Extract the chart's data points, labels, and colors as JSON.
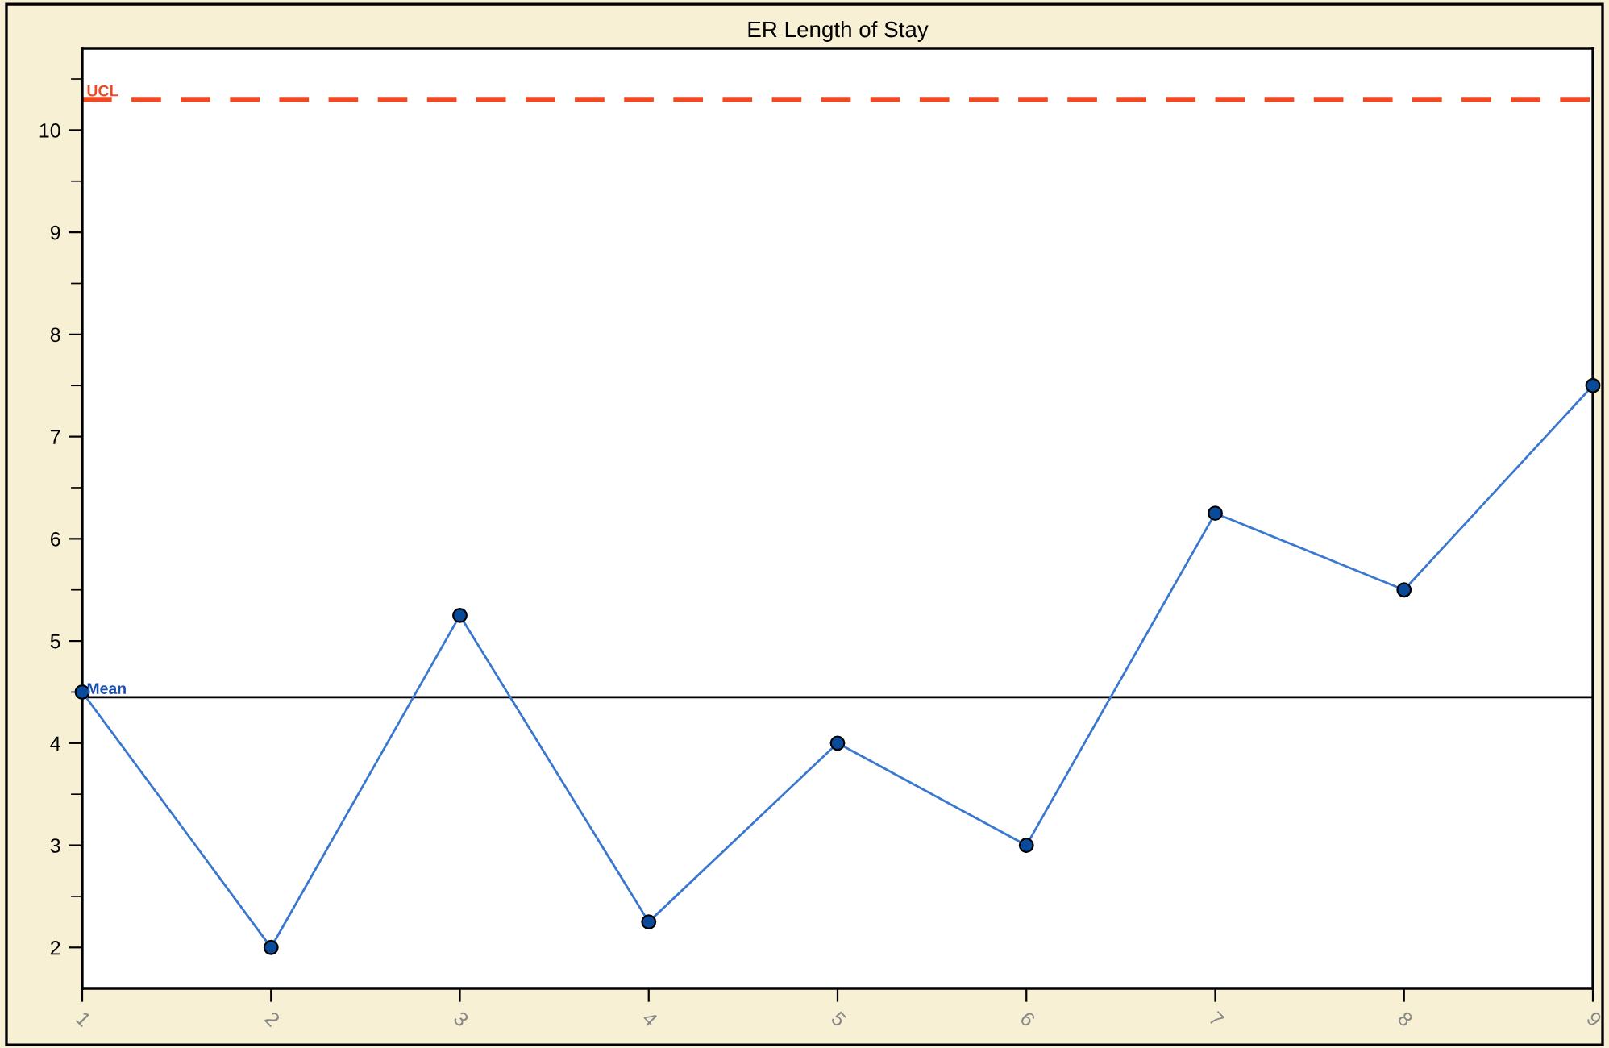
{
  "chart_data": {
    "type": "line",
    "title": "ER Length of Stay",
    "x": [
      1,
      2,
      3,
      4,
      5,
      6,
      7,
      8,
      9
    ],
    "series": [
      {
        "color": "#3a78d0",
        "values": [
          4.5,
          2,
          5.25,
          2.25,
          4,
          3,
          6.25,
          5.5,
          7.5
        ]
      }
    ],
    "marker": "circle",
    "line_style": "solid",
    "xlim": [
      1,
      9
    ],
    "xticks": [
      1,
      2,
      3,
      4,
      5,
      6,
      7,
      8,
      9
    ],
    "ylim": [
      1.6,
      10.8
    ],
    "yticks": [
      2,
      3,
      4,
      5,
      6,
      7,
      8,
      9,
      10
    ],
    "ref_lines": [
      {
        "axis": "y",
        "value": 10.3,
        "label": "UCL",
        "color": "#f04a24",
        "line_style": "dashed"
      },
      {
        "axis": "y",
        "value": 4.45,
        "label": "Mean",
        "color": "#000000",
        "line_style": "solid"
      }
    ],
    "grid": false,
    "legend": false
  }
}
